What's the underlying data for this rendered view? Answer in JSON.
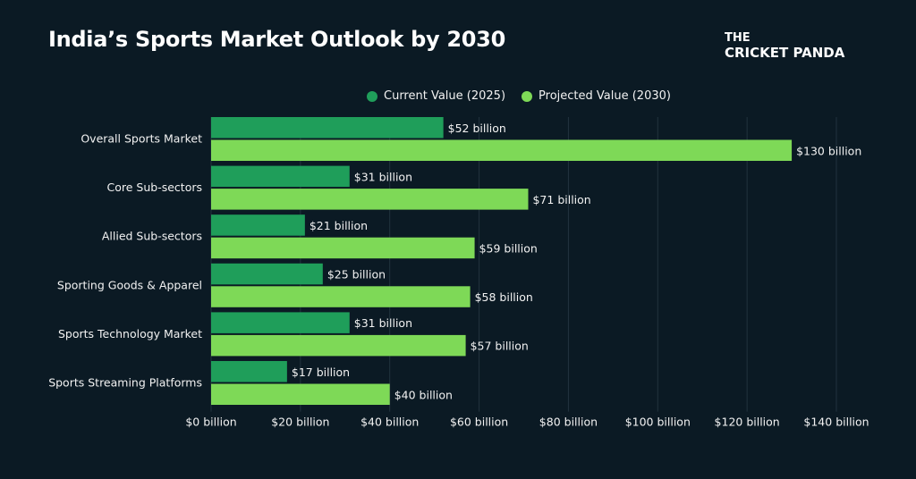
{
  "brand": {
    "line1": "THE",
    "line2": "CRICKET PANDA"
  },
  "colors": {
    "current": "#1f9e5a",
    "projected": "#7ed957",
    "grid": "#22333e",
    "text": "#f2f2f2"
  },
  "chart_data": {
    "type": "bar",
    "orientation": "horizontal",
    "title": "India’s Sports Market Outlook by 2030",
    "categories": [
      "Overall Sports Market",
      "Core Sub-sectors",
      "Allied Sub-sectors",
      "Sporting Goods & Apparel",
      "Sports Technology Market",
      "Sports Streaming Platforms"
    ],
    "series": [
      {
        "name": "Current Value (2025)",
        "values": [
          52,
          31,
          21,
          25,
          31,
          17
        ],
        "labels": [
          "$52 billion",
          "$31 billion",
          "$21 billion",
          "$25 billion",
          "$31 billion",
          "$17 billion"
        ]
      },
      {
        "name": "Projected Value (2030)",
        "values": [
          130,
          71,
          59,
          58,
          57,
          40
        ],
        "labels": [
          "$130 billion",
          "$71 billion",
          "$59 billion",
          "$58 billion",
          "$57 billion",
          "$40 billion"
        ]
      }
    ],
    "xlim": [
      0,
      140
    ],
    "xticks": [
      0,
      20,
      40,
      60,
      80,
      100,
      120,
      140
    ],
    "xtick_labels": [
      "$0 billion",
      "$20 billion",
      "$40 billion",
      "$60 billion",
      "$80 billion",
      "$100 billion",
      "$120 billion",
      "$140 billion"
    ],
    "grid": true,
    "legend_position": "top"
  }
}
